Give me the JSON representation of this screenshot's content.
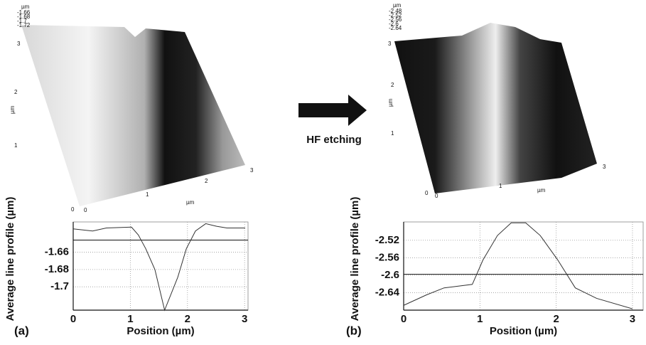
{
  "annotation": "HF etching",
  "afm_images": [
    {
      "z_unit": "µm",
      "z_ticks": [
        -1.66,
        -1.68,
        -1.7,
        -1.72
      ],
      "y_ticks": [
        3,
        2,
        1,
        0
      ],
      "y_label": "µm",
      "x_ticks": [
        0,
        1,
        2,
        3
      ],
      "x_label": "µm"
    },
    {
      "z_unit": "µm",
      "z_ticks": [
        -2.48,
        -2.52,
        -2.56,
        -2.6,
        -2.64
      ],
      "y_ticks": [
        3,
        2,
        1,
        0
      ],
      "y_label": "µm",
      "x_ticks": [
        0,
        1,
        2,
        3
      ],
      "x_label": "µm"
    }
  ],
  "chart_data": [
    {
      "type": "line",
      "panel_label": "(a)",
      "xlabel": "Position (µm)",
      "ylabel": "Average line profile (µm)",
      "x": [
        0,
        0.34,
        0.58,
        1.02,
        1.14,
        1.27,
        1.43,
        1.6,
        1.83,
        1.98,
        2.14,
        2.32,
        2.51,
        2.69,
        3.01
      ],
      "values": [
        -1.633,
        -1.6355,
        -1.632,
        -1.631,
        -1.64,
        -1.656,
        -1.68,
        -1.727,
        -1.689,
        -1.656,
        -1.6355,
        -1.627,
        -1.63,
        -1.632,
        -1.632
      ],
      "color": "#333333",
      "reference_line": -1.646,
      "xlim": [
        0,
        3.06
      ],
      "xticks": [
        0,
        1,
        2,
        3
      ],
      "ylim": [
        -1.727,
        -1.625
      ],
      "yticks": [
        -1.66,
        -1.68,
        -1.7
      ],
      "grid": true
    },
    {
      "type": "line",
      "panel_label": "(b)",
      "xlabel": "Position (µm)",
      "ylabel": "Average line profile (µm)",
      "x": [
        0,
        0.3,
        0.53,
        0.9,
        1.04,
        1.23,
        1.41,
        1.6,
        1.79,
        2.02,
        2.25,
        2.53,
        3.0
      ],
      "values": [
        -2.669,
        -2.645,
        -2.629,
        -2.621,
        -2.565,
        -2.509,
        -2.48,
        -2.48,
        -2.509,
        -2.565,
        -2.629,
        -2.653,
        -2.677
      ],
      "color": "#333333",
      "reference_line": -2.598,
      "xlim": [
        0,
        3.14
      ],
      "xticks": [
        0,
        1,
        2,
        3
      ],
      "ylim": [
        -2.68,
        -2.478
      ],
      "yticks": [
        -2.52,
        -2.56,
        -2.6,
        -2.64
      ],
      "grid": true
    }
  ]
}
